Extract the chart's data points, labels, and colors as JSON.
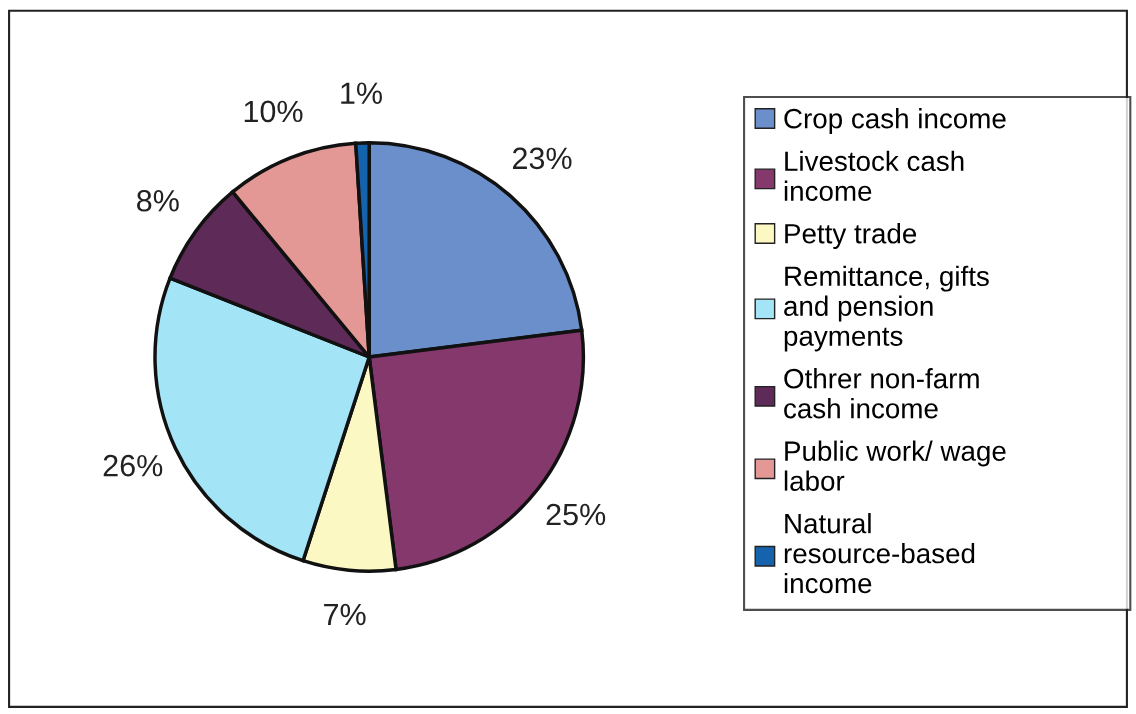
{
  "chart_data": {
    "type": "pie",
    "categories": [
      "Crop cash income",
      "Livestock cash income",
      "Petty trade",
      "Remittance, gifts and pension payments",
      "Othrer non-farm cash income",
      "Public work/ wage labor",
      "Natural resource-based income"
    ],
    "values": [
      23,
      25,
      7,
      26,
      8,
      10,
      1
    ],
    "value_labels": [
      "23%",
      "25%",
      "7%",
      "26%",
      "8%",
      "10%",
      "1%"
    ],
    "colors": [
      "#6a8fcb",
      "#84386c",
      "#fbf8c4",
      "#a3e4f6",
      "#5e2a58",
      "#e39896",
      "#1663ad"
    ],
    "legend": "right"
  }
}
